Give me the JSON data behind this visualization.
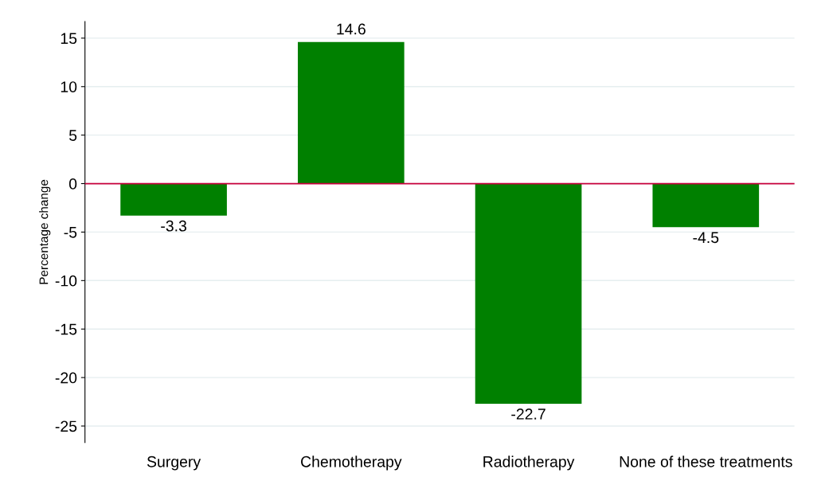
{
  "chart_data": {
    "type": "bar",
    "ylabel": "Percentage change",
    "categories": [
      "Surgery",
      "Chemotherapy",
      "Radiotherapy",
      "None of these treatments"
    ],
    "values": [
      -3.3,
      14.6,
      -22.7,
      -4.5
    ],
    "color": "#008000",
    "ylim": [
      -26.7,
      16.7
    ],
    "yticks": [
      -25,
      -20,
      -15,
      -10,
      -5,
      0,
      5,
      10,
      15
    ],
    "grid": "y",
    "data_labels": true,
    "ref_lines": [
      {
        "axis": "y",
        "value": 0,
        "color": "#c8003c"
      }
    ]
  }
}
